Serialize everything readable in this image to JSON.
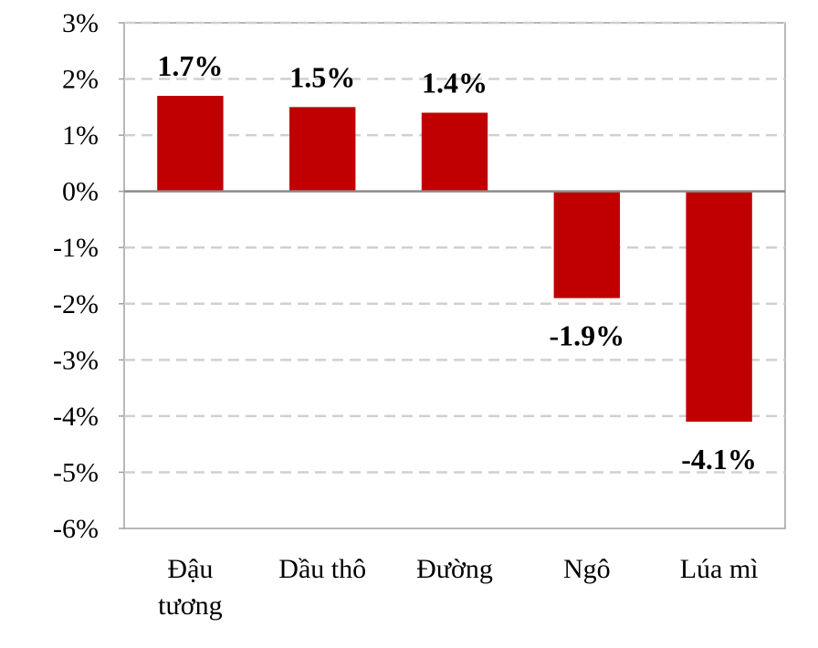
{
  "chart_data": {
    "type": "bar",
    "categories": [
      [
        "Đậu",
        "tương"
      ],
      [
        "Dầu thô"
      ],
      [
        "Đường"
      ],
      [
        "Ngô"
      ],
      [
        "Lúa mì"
      ]
    ],
    "values": [
      1.7,
      1.5,
      1.4,
      -1.9,
      -4.1
    ],
    "data_labels": [
      "1.7%",
      "1.5%",
      "1.4%",
      "-1.9%",
      "-4.1%"
    ],
    "yticks": [
      3,
      2,
      1,
      0,
      -1,
      -2,
      -3,
      -4,
      -5,
      -6
    ],
    "ytick_labels": [
      "3%",
      "2%",
      "1%",
      "0%",
      "-1%",
      "-2%",
      "-3%",
      "-4%",
      "-5%",
      "-6%"
    ],
    "ylim": [
      -6,
      3
    ],
    "title": "",
    "xlabel": "",
    "ylabel": "",
    "grid": "horizontal dashed",
    "colors": {
      "bar": "#c00000",
      "grid": "#d0d0d0",
      "axis": "#a0a0a0",
      "zero_line": "#8c8c8c"
    }
  }
}
